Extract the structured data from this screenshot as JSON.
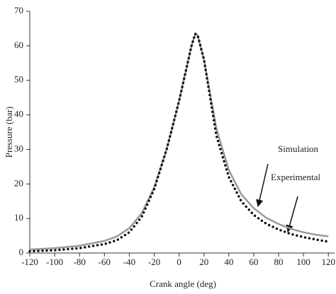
{
  "chart_data": {
    "type": "line",
    "x_label": "Crank angle (deg)",
    "y_label": "Pressure (bar)",
    "x": [
      -120,
      -100,
      -80,
      -60,
      -50,
      -40,
      -30,
      -20,
      -10,
      0,
      5,
      10,
      13,
      15,
      20,
      25,
      30,
      40,
      50,
      60,
      70,
      80,
      90,
      100,
      110,
      120
    ],
    "series": [
      {
        "name": "Simulation",
        "color": "#999999",
        "style": "solid",
        "values": [
          1.0,
          1.4,
          2.1,
          3.5,
          4.8,
          7.2,
          11.5,
          19,
          30,
          44,
          52,
          60,
          63.5,
          63,
          56,
          46,
          36,
          24,
          17,
          13,
          10.2,
          8.4,
          7.0,
          6.0,
          5.3,
          4.8
        ]
      },
      {
        "name": "Experimental",
        "color": "#111111",
        "style": "dotted",
        "values": [
          0.5,
          0.8,
          1.4,
          2.6,
          3.7,
          6.0,
          10.5,
          18.5,
          30,
          44,
          52,
          60,
          63.5,
          63,
          56,
          45,
          34,
          22,
          15,
          11,
          8.5,
          6.8,
          5.5,
          4.6,
          3.9,
          3.3
        ]
      }
    ],
    "xlim": [
      -120,
      125
    ],
    "ylim": [
      0,
      70
    ],
    "xticks": [
      -120,
      -100,
      -80,
      -60,
      -40,
      -20,
      0,
      20,
      40,
      60,
      80,
      100,
      120
    ],
    "yticks": [
      0,
      10,
      20,
      30,
      40,
      50,
      60,
      70
    ]
  }
}
